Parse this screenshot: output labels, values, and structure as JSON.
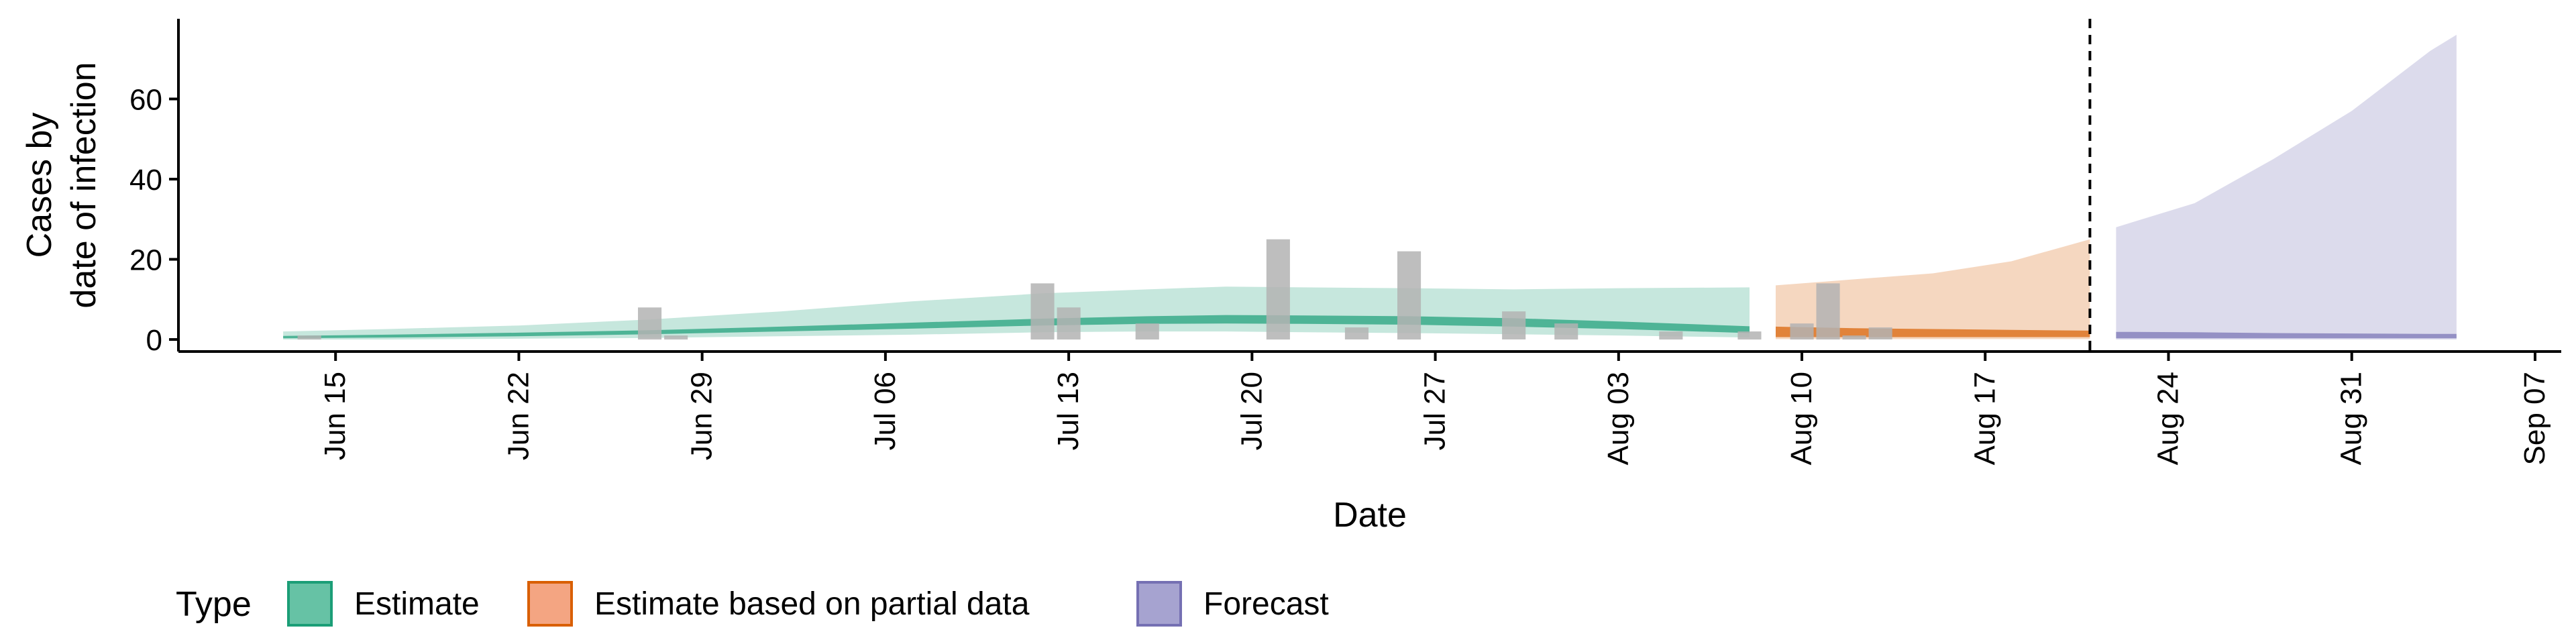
{
  "chart_data": {
    "type": "area",
    "title": "",
    "xlabel": "Date",
    "ylabel": "Cases by\ndate of infection",
    "ylabel_lines": [
      "Cases by",
      "date of infection"
    ],
    "xlim": [
      "2020-06-09",
      "2020-09-08"
    ],
    "ylim": [
      -3,
      80
    ],
    "yticks": [
      0,
      20,
      40,
      60
    ],
    "xticks": [
      {
        "date": "2020-06-15",
        "label": "Jun 15"
      },
      {
        "date": "2020-06-22",
        "label": "Jun 22"
      },
      {
        "date": "2020-06-29",
        "label": "Jun 29"
      },
      {
        "date": "2020-07-06",
        "label": "Jul 06"
      },
      {
        "date": "2020-07-13",
        "label": "Jul 13"
      },
      {
        "date": "2020-07-20",
        "label": "Jul 20"
      },
      {
        "date": "2020-07-27",
        "label": "Jul 27"
      },
      {
        "date": "2020-08-03",
        "label": "Aug 03"
      },
      {
        "date": "2020-08-10",
        "label": "Aug 10"
      },
      {
        "date": "2020-08-17",
        "label": "Aug 17"
      },
      {
        "date": "2020-08-24",
        "label": "Aug 24"
      },
      {
        "date": "2020-08-31",
        "label": "Aug 31"
      },
      {
        "date": "2020-09-07",
        "label": "Sep 07"
      }
    ],
    "grid": false,
    "forecast_line_date": "2020-08-21",
    "legend": {
      "position": "bottom",
      "title": "Type",
      "entries": [
        {
          "label": "Estimate",
          "fill": "#66c2a5",
          "stroke": "#1b9e77"
        },
        {
          "label": "Estimate based on partial data",
          "fill": "#f4a582",
          "stroke": "#d95f02"
        },
        {
          "label": "Forecast",
          "fill": "#a6a3d0",
          "stroke": "#7570b3"
        }
      ]
    },
    "observed_cases": {
      "dates": [
        "2020-06-14",
        "2020-06-27",
        "2020-06-28",
        "2020-07-12",
        "2020-07-13",
        "2020-07-16",
        "2020-07-21",
        "2020-07-24",
        "2020-07-26",
        "2020-07-30",
        "2020-08-01",
        "2020-08-05",
        "2020-08-08",
        "2020-08-10",
        "2020-08-11",
        "2020-08-12",
        "2020-08-13"
      ],
      "values": [
        1,
        8,
        1,
        14,
        8,
        4,
        25,
        3,
        22,
        7,
        4,
        2,
        2,
        4,
        14,
        1,
        3
      ],
      "color": "#b3b3b3"
    },
    "series": [
      {
        "name": "Estimate",
        "color": "#1b9e77",
        "dates": [
          "2020-06-13",
          "2020-06-17",
          "2020-06-22",
          "2020-06-27",
          "2020-07-02",
          "2020-07-07",
          "2020-07-12",
          "2020-07-16",
          "2020-07-19",
          "2020-07-22",
          "2020-07-26",
          "2020-07-30",
          "2020-08-03",
          "2020-08-08"
        ],
        "outer_lower": [
          0,
          0,
          0.2,
          0.4,
          0.8,
          1.2,
          1.8,
          2.0,
          2.0,
          1.8,
          1.6,
          1.3,
          1.0,
          0.5
        ],
        "outer_upper": [
          2,
          2.6,
          3.5,
          5,
          7,
          9.5,
          11.5,
          12.5,
          13.2,
          13,
          12.8,
          12.5,
          12.8,
          13
        ],
        "inner_lower": [
          0.3,
          0.5,
          0.8,
          1.3,
          2.0,
          2.7,
          3.5,
          3.9,
          4.0,
          3.9,
          3.7,
          3.2,
          2.6,
          1.6
        ],
        "inner_upper": [
          0.9,
          1.2,
          1.7,
          2.3,
          3.2,
          4.2,
          5.2,
          5.8,
          6.1,
          6.0,
          5.8,
          5.3,
          4.5,
          3.3
        ]
      },
      {
        "name": "Estimate based on partial data",
        "color": "#d95f02",
        "dates": [
          "2020-08-09",
          "2020-08-12",
          "2020-08-15",
          "2020-08-18",
          "2020-08-21"
        ],
        "outer_lower": [
          0.1,
          0.1,
          0.1,
          0.1,
          0.1
        ],
        "outer_upper": [
          13.5,
          15,
          16.5,
          19.5,
          25
        ],
        "inner_lower": [
          0.6,
          0.6,
          0.6,
          0.6,
          0.6
        ],
        "inner_upper": [
          3.2,
          2.8,
          2.6,
          2.4,
          2.2
        ]
      },
      {
        "name": "Forecast",
        "color": "#7570b3",
        "dates": [
          "2020-08-22",
          "2020-08-25",
          "2020-08-28",
          "2020-08-31",
          "2020-09-03",
          "2020-09-04"
        ],
        "outer_lower": [
          0,
          0,
          0,
          0,
          0,
          0
        ],
        "outer_upper": [
          28,
          34,
          45,
          57,
          72,
          76
        ],
        "inner_lower": [
          0.3,
          0.3,
          0.3,
          0.3,
          0.3,
          0.3
        ],
        "inner_upper": [
          1.9,
          1.8,
          1.6,
          1.5,
          1.4,
          1.4
        ]
      }
    ]
  }
}
